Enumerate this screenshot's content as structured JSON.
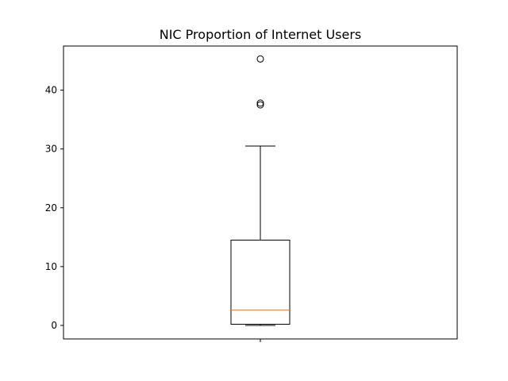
{
  "chart_data": {
    "type": "box",
    "title": "NIC Proportion of Internet Users",
    "xlabel": "",
    "ylabel": "",
    "ylim": [
      -2.3,
      47.5
    ],
    "yticks": [
      0,
      10,
      20,
      30,
      40
    ],
    "ytick_labels": [
      "0",
      "10",
      "20",
      "30",
      "40"
    ],
    "grid": false,
    "box": {
      "whisker_low": 0.0,
      "q1": 0.2,
      "median": 2.6,
      "q3": 14.5,
      "whisker_high": 30.5
    },
    "outliers": [
      45.3,
      37.8,
      37.5
    ],
    "colors": {
      "median": "#ff7f0e",
      "box": "#000000"
    }
  }
}
